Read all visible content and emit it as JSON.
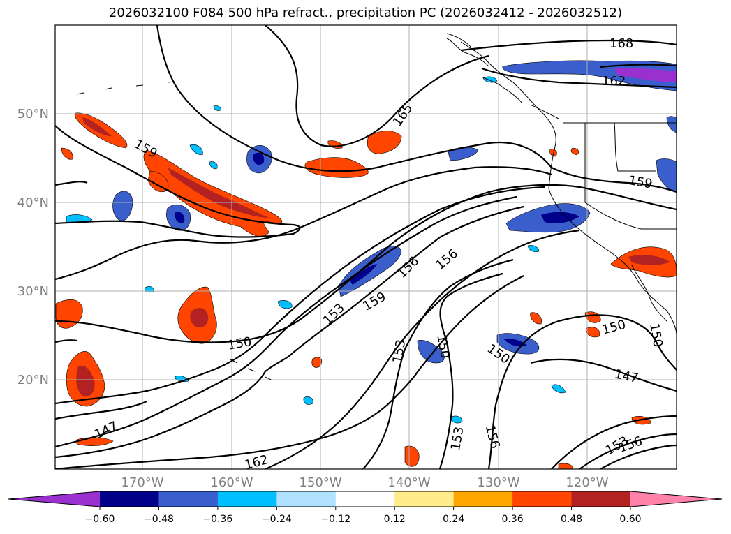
{
  "title": "2026032100 F084 500 hPa refract., precipitation PC (2026032412 - 2026032512)",
  "map": {
    "lat_labels": [
      "50°N",
      "40°N",
      "30°N",
      "20°N"
    ],
    "lon_labels": [
      "170°W",
      "160°W",
      "150°W",
      "140°W",
      "130°W",
      "120°W"
    ],
    "contour_labels": [
      "168",
      "162",
      "165",
      "159",
      "159",
      "156",
      "156",
      "159",
      "153",
      "150",
      "153",
      "150",
      "150",
      "150",
      "150",
      "147",
      "147",
      "153",
      "156",
      "162",
      "153",
      "156"
    ],
    "gridline_color": "#b0b0b0"
  },
  "colorbar": {
    "labels": [
      "−0.60",
      "−0.48",
      "−0.36",
      "−0.24",
      "−0.12",
      "0.12",
      "0.24",
      "0.36",
      "0.48",
      "0.60"
    ],
    "colors": [
      "#9b30d0",
      "#00008b",
      "#3a5fcd",
      "#00bfff",
      "#b0e2ff",
      "#ffffff",
      "#ffec8b",
      "#ffa500",
      "#ff4500",
      "#b22222",
      "#ff82ab"
    ]
  }
}
